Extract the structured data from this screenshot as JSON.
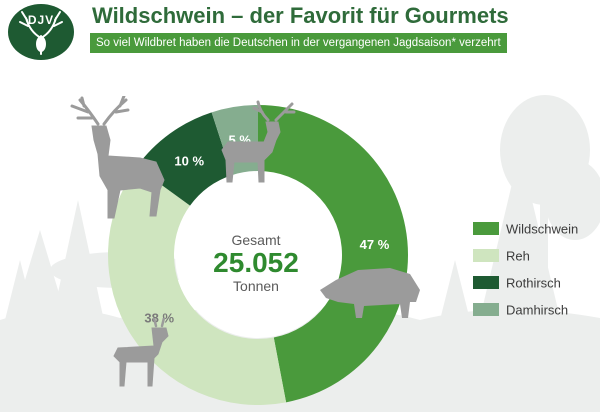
{
  "logo": {
    "text": "DJV"
  },
  "header": {
    "title": "Wildschwein – der Favorit für Gourmets",
    "subtitle": "So viel Wildbret haben die Deutschen in der vergangenen Jagdsaison* verzehrt"
  },
  "colors": {
    "brand_dark": "#1e5a32",
    "title_green": "#2f6b3a",
    "subtitle_bg": "#4a9a3c",
    "background_trees": "#eceeed",
    "animals": "#9b9b9b"
  },
  "center": {
    "top": "Gesamt",
    "total": "25.052",
    "unit": "Tonnen"
  },
  "chart_data": {
    "type": "pie",
    "series": [
      {
        "name": "Wildschwein",
        "value": 47,
        "label": "47 %",
        "color": "#4a9a3c"
      },
      {
        "name": "Reh",
        "value": 38,
        "label": "38 %",
        "color": "#cfe5bf"
      },
      {
        "name": "Rothirsch",
        "value": 10,
        "label": "10 %",
        "color": "#1e5a32"
      },
      {
        "name": "Damhirsch",
        "value": 5,
        "label": "5 %",
        "color": "#85ad8f"
      }
    ],
    "legend_position": "right"
  },
  "icons": [
    "deer-logo-icon",
    "red-deer-icon",
    "fallow-deer-icon",
    "boar-icon",
    "roe-deer-icon"
  ]
}
